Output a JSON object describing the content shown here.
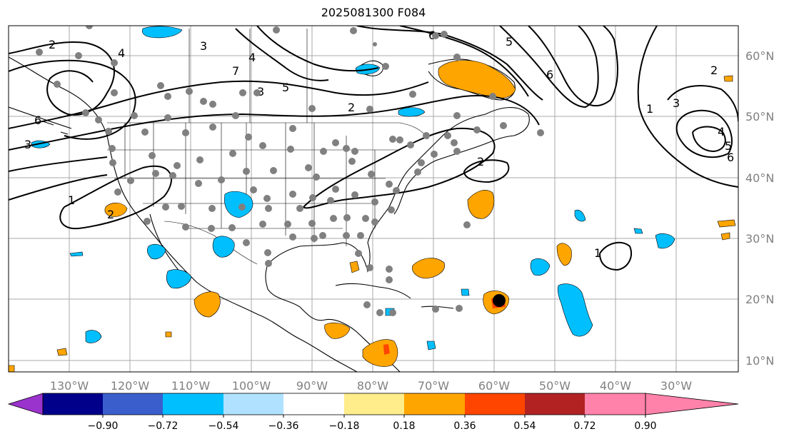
{
  "title": "2025081300 F084",
  "longitude_labels": [
    "130°W",
    "120°W",
    "110°W",
    "100°W",
    "90°W",
    "80°W",
    "70°W",
    "60°W",
    "50°W",
    "40°W",
    "30°W"
  ],
  "latitude_labels": [
    "60°N",
    "50°N",
    "40°N",
    "30°N",
    "20°N",
    "10°N"
  ],
  "colorbar": {
    "ticks": [
      "−0.90",
      "−0.72",
      "−0.54",
      "−0.36",
      "−0.18",
      "0.18",
      "0.36",
      "0.54",
      "0.72",
      "0.90"
    ],
    "colors": [
      "#9a32cd",
      "#00008b",
      "#3a5fcd",
      "#00bfff",
      "#b0e2ff",
      "#ffffff",
      "#ffec8b",
      "#ffa500",
      "#ff4500",
      "#b22222",
      "#ff82ab"
    ]
  },
  "contour_labels": [
    "2",
    "4",
    "3",
    "4",
    "5",
    "2",
    "6",
    "3",
    "1",
    "2",
    "2",
    "6",
    "2",
    "1",
    "3",
    "4",
    "5",
    "6",
    "1",
    "7",
    "5",
    "6",
    "3"
  ],
  "colors": {
    "contour": "#000000",
    "gridline": "#a9a9a9",
    "station": "#808080",
    "storm_center": "#000000"
  }
}
